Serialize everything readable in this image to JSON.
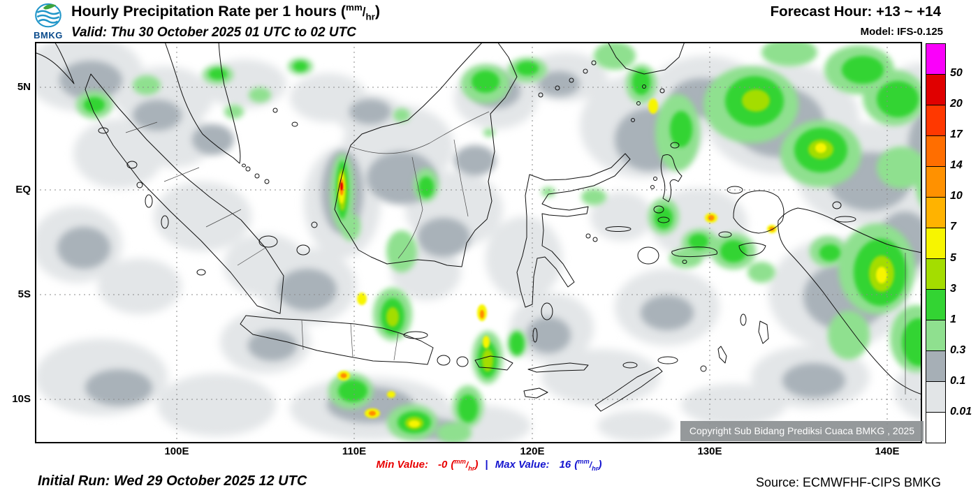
{
  "header": {
    "logo_text": "BMKG",
    "title_prefix": "Hourly Precipitation Rate per 1 hours (",
    "title_suffix": ")",
    "valid_line": "Valid: Thu 30 October 2025 01 UTC to 02 UTC",
    "forecast_hour": "Forecast Hour: +13 ~ +14",
    "model": "Model: IFS-0.125"
  },
  "unit": {
    "open": "(",
    "sup": "mm",
    "slash": "/",
    "sub": "hr",
    "close": ")"
  },
  "map": {
    "lat_labels": [
      "5N",
      "EQ",
      "5S",
      "10S"
    ],
    "lon_labels": [
      "100E",
      "110E",
      "120E",
      "130E",
      "140E"
    ],
    "copyright": "Copyright Sub Bidang Prediksi Cuaca BMKG , 2025"
  },
  "legend": {
    "values": [
      "50",
      "20",
      "17",
      "14",
      "10",
      "7",
      "5",
      "3",
      "1",
      "0.3",
      "0.1",
      "0.01"
    ],
    "colors": [
      "#fa00fa",
      "#e00000",
      "#ff3800",
      "#ff6e00",
      "#ff9100",
      "#ffb300",
      "#f7f500",
      "#a4dd00",
      "#33d433",
      "#8fe08f",
      "#a6afb6",
      "#e2e5e7",
      "#ffffff"
    ]
  },
  "footer": {
    "initial_run": "Initial Run: Wed 29 October 2025 12 UTC",
    "min_label": "Min Value:",
    "min_value": "-0",
    "separator": "|",
    "max_label": "Max Value:",
    "max_value": "16",
    "source": "Source: ECMWFHF-CIPS BMKG"
  }
}
